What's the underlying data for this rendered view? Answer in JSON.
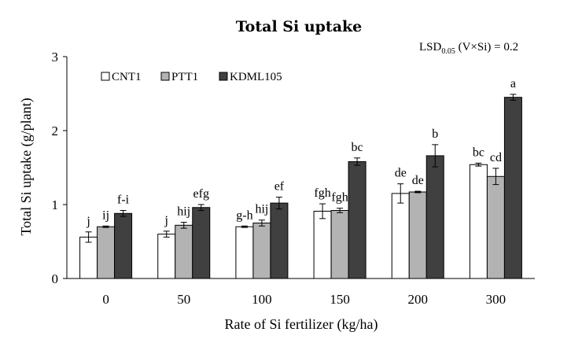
{
  "chart_data": {
    "type": "bar",
    "title": "Total Si uptake",
    "annotation": {
      "lsd_main": "LSD",
      "lsd_sub": "0.05",
      "lsd_rest": " (V×Si) = 0.2"
    },
    "xlabel": "Rate of Si fertilizer (kg/ha)",
    "ylabel": "Total Si uptake (g/plant)",
    "ylim": [
      0,
      3
    ],
    "yticks": [
      "0",
      "1",
      "2",
      "3"
    ],
    "categories": [
      "0",
      "50",
      "100",
      "150",
      "200",
      "300"
    ],
    "legend_position": "top-left",
    "grid": false,
    "series": [
      {
        "name": "CNT1",
        "color": "#ffffff",
        "values": [
          0.56,
          0.6,
          0.7,
          0.91,
          1.15,
          1.54
        ],
        "errors": [
          0.07,
          0.04,
          0.01,
          0.1,
          0.13,
          0.02
        ],
        "letters": [
          "j",
          "j",
          "g-h",
          "fgh",
          "de",
          "bc"
        ]
      },
      {
        "name": "PTT1",
        "color": "#b3b3b3",
        "values": [
          0.7,
          0.72,
          0.75,
          0.92,
          1.17,
          1.38
        ],
        "errors": [
          0.01,
          0.04,
          0.04,
          0.03,
          0.01,
          0.11
        ],
        "letters": [
          "ij",
          "hij",
          "hij",
          "fgh",
          "de",
          "cd"
        ]
      },
      {
        "name": "KDML105",
        "color": "#404040",
        "values": [
          0.88,
          0.96,
          1.02,
          1.58,
          1.66,
          2.45
        ],
        "errors": [
          0.04,
          0.04,
          0.08,
          0.05,
          0.15,
          0.04
        ],
        "letters": [
          "f-i",
          "efg",
          "ef",
          "bc",
          "b",
          "a"
        ]
      }
    ]
  }
}
